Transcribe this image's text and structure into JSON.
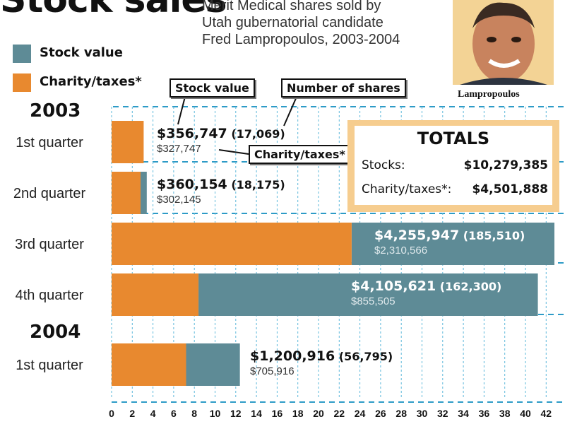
{
  "header": {
    "title": "Stock sales",
    "subtitle": "Merit Medical shares sold by Utah gubernatorial candidate Fred Lampropoulos, 2003-2004",
    "photo_caption": "Lampropoulos"
  },
  "legend": [
    {
      "label": "Stock value",
      "color": "#5e8b96"
    },
    {
      "label": "Charity/taxes*",
      "color": "#e8892f"
    }
  ],
  "callouts": {
    "stock_value": "Stock value",
    "number_of_shares": "Number of shares",
    "charity": "Charity/taxes*"
  },
  "totals": {
    "heading": "TOTALS",
    "rows": [
      {
        "label": "Stocks:",
        "value": "$10,279,385"
      },
      {
        "label": "Charity/taxes*:",
        "value": "$4,501,888"
      }
    ]
  },
  "years": [
    "2003",
    "2004"
  ],
  "chart_data": {
    "type": "bar",
    "orientation": "horizontal",
    "stacked": true,
    "x_unit": "millions of dollars",
    "xlim": [
      0,
      42
    ],
    "x_ticks": [
      0,
      2,
      4,
      6,
      8,
      10,
      12,
      14,
      16,
      18,
      20,
      22,
      24,
      26,
      28,
      30,
      32,
      34,
      36,
      38,
      40,
      42
    ],
    "categories": [
      "1st quarter",
      "2nd quarter",
      "3rd quarter",
      "4th quarter",
      "1st quarter"
    ],
    "category_years": [
      "2003",
      "2003",
      "2003",
      "2003",
      "2004"
    ],
    "series": [
      {
        "name": "Charity/taxes*",
        "color": "#e8892f",
        "values": [
          0.327747,
          0.302145,
          2.310566,
          0.855505,
          0.705916
        ]
      },
      {
        "name": "Stock value",
        "color": "#5e8b96",
        "values": [
          0.356747,
          0.360154,
          4.255947,
          4.105621,
          1.200916
        ]
      }
    ],
    "display_bars": [
      {
        "charity_end": 3.1,
        "stock_end": 3.1
      },
      {
        "charity_end": 2.8,
        "stock_end": 3.4
      },
      {
        "charity_end": 23.2,
        "stock_end": 42.8
      },
      {
        "charity_end": 8.4,
        "stock_end": 41.2
      },
      {
        "charity_end": 7.2,
        "stock_end": 12.4
      }
    ],
    "data_labels": [
      {
        "stock": "$356,747",
        "shares": "(17,069)",
        "charity": "$327,747"
      },
      {
        "stock": "$360,154",
        "shares": "(18,175)",
        "charity": "$302,145"
      },
      {
        "stock": "$4,255,947",
        "shares": "(185,510)",
        "charity": "$2,310,566"
      },
      {
        "stock": "$4,105,621",
        "shares": "(162,300)",
        "charity": "$855,505"
      },
      {
        "stock": "$1,200,916",
        "shares": "(56,795)",
        "charity": "$705,916"
      }
    ],
    "grid": true,
    "legend_position": "top-left"
  }
}
